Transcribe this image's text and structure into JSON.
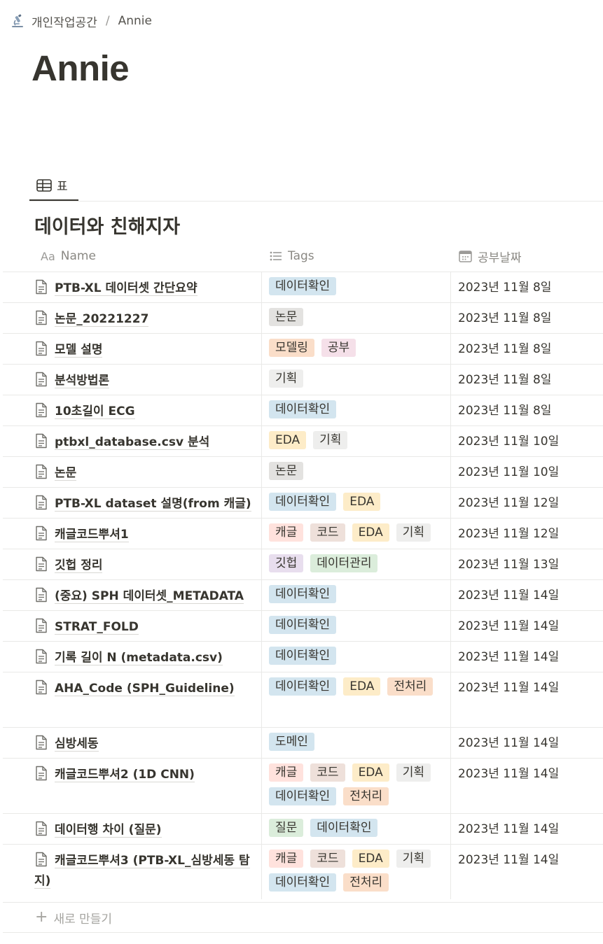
{
  "breadcrumb": {
    "workspace": "개인작업공간",
    "separator": "/",
    "page": "Annie",
    "icon": "microscope-icon"
  },
  "page": {
    "title": "Annie"
  },
  "view": {
    "tab_label": "표",
    "tab_icon": "table-icon"
  },
  "database": {
    "title": "데이터와 친해지자",
    "columns": {
      "name": "Name",
      "name_icon_text": "Aa",
      "tags": "Tags",
      "date": "공부날짜"
    },
    "new_row_label": "새로 만들기"
  },
  "tag_colors": {
    "데이터확인": "#d3e5ef",
    "논문": "#e3e2e0",
    "모델링": "#fadec9",
    "공부": "#f5e0e9",
    "기획": "#eeeeed",
    "EDA": "#fdecc8",
    "캐글": "#ffe2dd",
    "코드": "#eee0da",
    "깃헙": "#e8deee",
    "데이터관리": "#dbeddb",
    "전처리": "#fadec9",
    "도메인": "#d3e5ef",
    "질문": "#dbeddb"
  },
  "rows": [
    {
      "name": "PTB-XL 데이터셋 간단요약",
      "tags": [
        "데이터확인"
      ],
      "date": "2023년 11월 8일"
    },
    {
      "name": "논문_20221227",
      "tags": [
        "논문"
      ],
      "date": "2023년 11월 8일"
    },
    {
      "name": "모델 설명",
      "tags": [
        "모델링",
        "공부"
      ],
      "date": "2023년 11월 8일"
    },
    {
      "name": "분석방법론",
      "tags": [
        "기획"
      ],
      "date": "2023년 11월 8일"
    },
    {
      "name": "10초길이 ECG",
      "tags": [
        "데이터확인"
      ],
      "date": "2023년 11월 8일"
    },
    {
      "name": "ptbxl_database.csv 분석",
      "tags": [
        "EDA",
        "기획"
      ],
      "date": "2023년 11월 10일"
    },
    {
      "name": "논문",
      "tags": [
        "논문"
      ],
      "date": "2023년 11월 10일"
    },
    {
      "name": "PTB-XL dataset 설명(from 캐글)",
      "tags": [
        "데이터확인",
        "EDA"
      ],
      "date": "2023년 11월 12일"
    },
    {
      "name": "캐글코드뿌셔1",
      "tags": [
        "캐글",
        "코드",
        "EDA",
        "기획"
      ],
      "date": "2023년 11월 12일"
    },
    {
      "name": "깃헙 정리",
      "tags": [
        "깃헙",
        "데이터관리"
      ],
      "date": "2023년 11월 13일"
    },
    {
      "name": "(중요) SPH 데이터셋_METADATA",
      "tags": [
        "데이터확인"
      ],
      "date": "2023년 11월 14일"
    },
    {
      "name": "STRAT_FOLD",
      "tags": [
        "데이터확인"
      ],
      "date": "2023년 11월 14일"
    },
    {
      "name": "기록 길이 N (metadata.csv)",
      "tags": [
        "데이터확인"
      ],
      "date": "2023년 11월 14일"
    },
    {
      "name": "AHA_Code (SPH_Guideline)",
      "tags": [
        "데이터확인",
        "EDA",
        "전처리"
      ],
      "date": "2023년 11월 14일"
    },
    {
      "name": "심방세동",
      "tags": [
        "도메인"
      ],
      "date": "2023년 11월 14일"
    },
    {
      "name": "캐글코드뿌셔2 (1D CNN)",
      "tags": [
        "캐글",
        "코드",
        "EDA",
        "기획",
        "데이터확인",
        "전처리"
      ],
      "date": "2023년 11월 14일"
    },
    {
      "name": "데이터행 차이 (질문)",
      "tags": [
        "질문",
        "데이터확인"
      ],
      "date": "2023년 11월 14일"
    },
    {
      "name": "캐글코드뿌셔3 (PTB-XL_심방세동 탐지)",
      "tags": [
        "캐글",
        "코드",
        "EDA",
        "기획",
        "데이터확인",
        "전처리"
      ],
      "date": "2023년 11월 14일"
    }
  ]
}
